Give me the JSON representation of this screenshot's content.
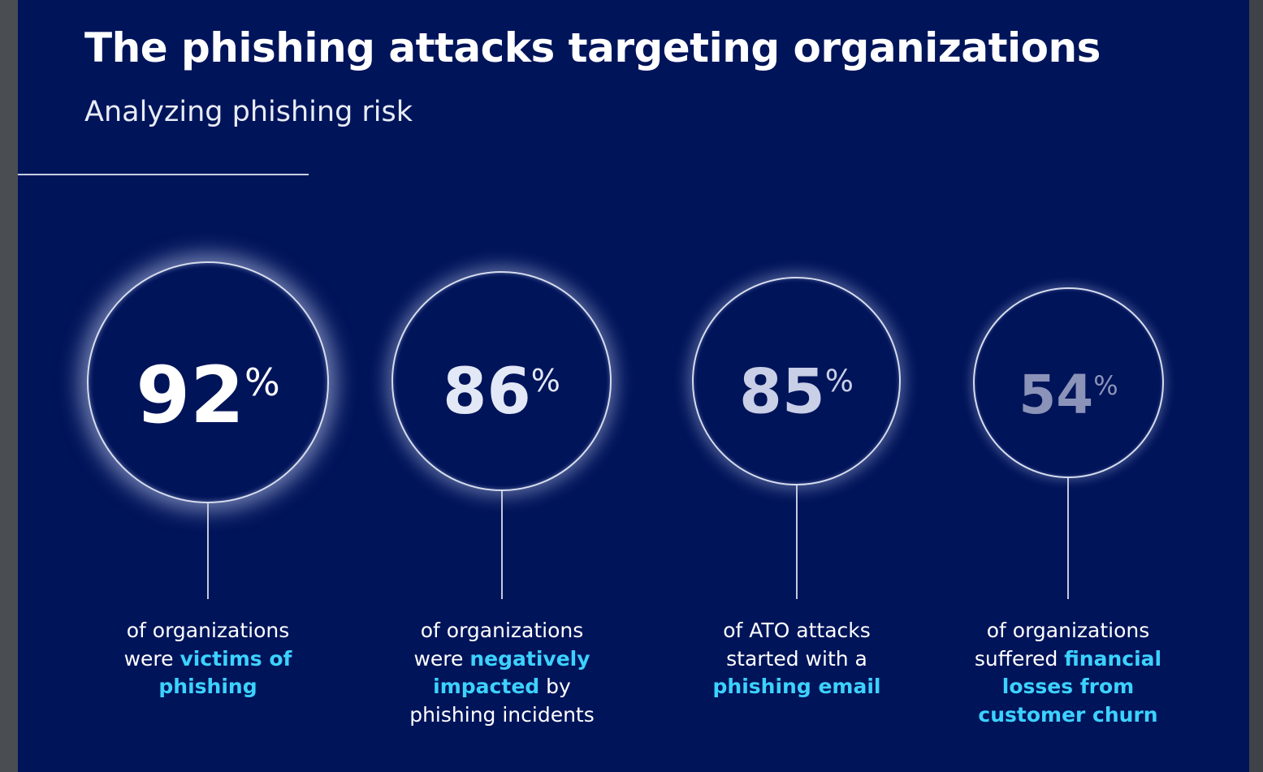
{
  "page": {
    "title": "The phishing attacks targeting organizations",
    "subtitle": "Analyzing phishing risk"
  },
  "stats": [
    {
      "value": "92",
      "unit": "%",
      "desc_1": "of organizations",
      "desc_2": "were ",
      "desc_hl_a": "victims of",
      "desc_hl_b": "phishing",
      "desc_tail": ""
    },
    {
      "value": "86",
      "unit": "%",
      "desc_1": "of organizations",
      "desc_2": "were ",
      "desc_hl_a": "negatively",
      "desc_hl_b": "impacted",
      "desc_tail": " by",
      "desc_3": "phishing incidents"
    },
    {
      "value": "85",
      "unit": "%",
      "desc_1": "of ATO attacks",
      "desc_2": "started with a",
      "desc_hl_a": "phishing email"
    },
    {
      "value": "54",
      "unit": "%",
      "desc_1": "of organizations",
      "desc_2": "suffered ",
      "desc_hl_a": "financial",
      "desc_hl_b": "losses from",
      "desc_hl_c": "customer churn"
    }
  ],
  "colors": {
    "background": "#00145a",
    "highlight": "#3cd2ff",
    "text": "#ffffff"
  }
}
